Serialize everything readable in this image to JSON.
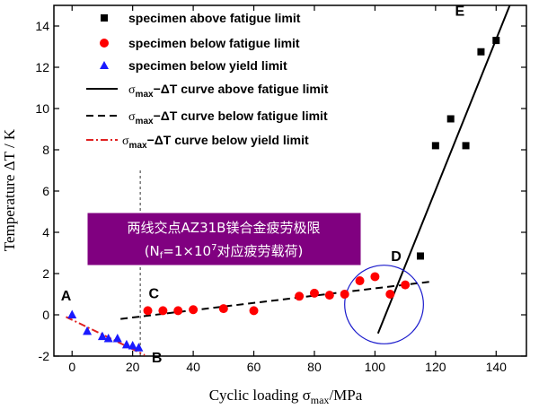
{
  "chart_data": {
    "type": "scatter",
    "xlabel_prefix": "Cyclic loading σ",
    "xlabel_sub": "max",
    "xlabel_suffix": "/MPa",
    "ylabel": "Temperature ΔT / K",
    "xlim": [
      -6,
      150
    ],
    "ylim": [
      -2,
      15
    ],
    "xticks": [
      0,
      20,
      40,
      60,
      80,
      100,
      120,
      140
    ],
    "yticks": [
      -2,
      0,
      2,
      4,
      6,
      8,
      10,
      12,
      14
    ],
    "series": [
      {
        "name": "specimen above fatigue limit",
        "marker": "square",
        "color": "#000000",
        "points": [
          [
            115,
            2.85
          ],
          [
            120,
            8.2
          ],
          [
            125,
            9.5
          ],
          [
            130,
            8.2
          ],
          [
            135,
            12.75
          ],
          [
            140,
            13.3
          ]
        ]
      },
      {
        "name": "specimen below fatigue limit",
        "marker": "circle",
        "color": "#ff0000",
        "points": [
          [
            25,
            0.2
          ],
          [
            30,
            0.2
          ],
          [
            35,
            0.2
          ],
          [
            40,
            0.25
          ],
          [
            50,
            0.3
          ],
          [
            60,
            0.2
          ],
          [
            75,
            0.9
          ],
          [
            80,
            1.05
          ],
          [
            85,
            0.95
          ],
          [
            90,
            1.0
          ],
          [
            95,
            1.65
          ],
          [
            100,
            1.85
          ],
          [
            105,
            1.0
          ],
          [
            110,
            1.45
          ]
        ]
      },
      {
        "name": "specimen below yield limit",
        "marker": "triangle",
        "color": "#1a1aff",
        "points": [
          [
            0,
            0.0
          ],
          [
            5,
            -0.8
          ],
          [
            10,
            -1.05
          ],
          [
            12,
            -1.15
          ],
          [
            15,
            -1.15
          ],
          [
            18,
            -1.45
          ],
          [
            20,
            -1.5
          ],
          [
            22,
            -1.6
          ]
        ]
      }
    ],
    "fit_lines": [
      {
        "name_prefix": "σ",
        "name_sub": "max",
        "name_suffix": "−ΔT  curve above fatigue limit",
        "style": "solid",
        "color": "#000000",
        "from": [
          101,
          -0.9
        ],
        "to": [
          144.5,
          15
        ]
      },
      {
        "name_prefix": "σ",
        "name_sub": "max",
        "name_suffix": "−ΔT  curve below fatigue limit",
        "style": "dash",
        "color": "#000000",
        "from": [
          16,
          -0.2
        ],
        "to": [
          118,
          1.6
        ]
      },
      {
        "name_prefix": "σ",
        "name_sub": "max",
        "name_suffix": "−ΔT  curve below yield limit",
        "style": "dashdot",
        "color": "#e02020",
        "from": [
          -2,
          -0.1
        ],
        "to": [
          24,
          -1.95
        ]
      }
    ],
    "vline": {
      "x": 22.5,
      "from_y": -2,
      "to_y": 7.0
    },
    "point_labels": [
      {
        "text": "A",
        "x": -2,
        "y": 0.7
      },
      {
        "text": "B",
        "x": 28,
        "y": -2.3
      },
      {
        "text": "C",
        "x": 27,
        "y": 0.8
      },
      {
        "text": "D",
        "x": 107,
        "y": 2.6
      },
      {
        "text": "E",
        "x": 128,
        "y": 14.5
      }
    ],
    "highlight_circle": {
      "cx": 103,
      "cy": 0.5,
      "radius": 13
    },
    "annotation": {
      "line1": "两线交点AZ31B镁合金疲劳极限",
      "line2_prefix": "(N",
      "line2_sub": "f",
      "line2_mid": "=1×10",
      "line2_sup": "7",
      "line2_suffix": "对应疲劳载荷)",
      "box_color": "#800080",
      "text_color": "#ffffff"
    }
  }
}
